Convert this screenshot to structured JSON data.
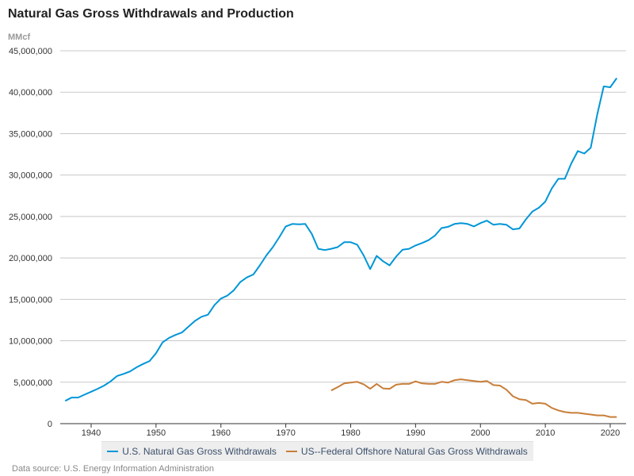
{
  "chart_data": {
    "type": "line",
    "title": "Natural Gas Gross Withdrawals and Production",
    "ylabel": "MMcf",
    "xlabel": "",
    "ylim": [
      0,
      45000000
    ],
    "xlim": [
      1935,
      2022
    ],
    "grid": true,
    "legend_position": "bottom",
    "yticks": [
      0,
      5000000,
      10000000,
      15000000,
      20000000,
      25000000,
      30000000,
      35000000,
      40000000,
      45000000
    ],
    "ytick_labels": [
      "0",
      "5,000,000",
      "10,000,000",
      "15,000,000",
      "20,000,000",
      "25,000,000",
      "30,000,000",
      "35,000,000",
      "40,000,000",
      "45,000,000"
    ],
    "xticks": [
      1940,
      1950,
      1960,
      1970,
      1980,
      1990,
      2000,
      2010,
      2020
    ],
    "xtick_labels": [
      "1940",
      "1950",
      "1960",
      "1970",
      "1980",
      "1990",
      "2000",
      "2010",
      "2020"
    ],
    "series": [
      {
        "name": "U.S. Natural Gas Gross Withdrawals",
        "color": "#0096d7",
        "x": [
          1936,
          1937,
          1938,
          1939,
          1940,
          1941,
          1942,
          1943,
          1944,
          1945,
          1946,
          1947,
          1948,
          1949,
          1950,
          1951,
          1952,
          1953,
          1954,
          1955,
          1956,
          1957,
          1958,
          1959,
          1960,
          1961,
          1962,
          1963,
          1964,
          1965,
          1966,
          1967,
          1968,
          1969,
          1970,
          1971,
          1972,
          1973,
          1974,
          1975,
          1976,
          1977,
          1978,
          1979,
          1980,
          1981,
          1982,
          1983,
          1984,
          1985,
          1986,
          1987,
          1988,
          1989,
          1990,
          1991,
          1992,
          1993,
          1994,
          1995,
          1996,
          1997,
          1998,
          1999,
          2000,
          2001,
          2002,
          2003,
          2004,
          2005,
          2006,
          2007,
          2008,
          2009,
          2010,
          2011,
          2012,
          2013,
          2014,
          2015,
          2016,
          2017,
          2018,
          2019,
          2020,
          2021
        ],
        "values": [
          2750000,
          3150000,
          3150000,
          3500000,
          3850000,
          4200000,
          4600000,
          5100000,
          5750000,
          6000000,
          6300000,
          6800000,
          7200000,
          7550000,
          8500000,
          9800000,
          10350000,
          10700000,
          11000000,
          11700000,
          12400000,
          12900000,
          13150000,
          14300000,
          15100000,
          15450000,
          16100000,
          17100000,
          17650000,
          18000000,
          19100000,
          20300000,
          21300000,
          22500000,
          23800000,
          24100000,
          24050000,
          24100000,
          22900000,
          21100000,
          20950000,
          21100000,
          21300000,
          21900000,
          21900000,
          21600000,
          20300000,
          18650000,
          20250000,
          19600000,
          19100000,
          20150000,
          21000000,
          21100000,
          21500000,
          21800000,
          22150000,
          22700000,
          23600000,
          23750000,
          24100000,
          24200000,
          24100000,
          23800000,
          24200000,
          24500000,
          24000000,
          24100000,
          24000000,
          23450000,
          23550000,
          24650000,
          25600000,
          26050000,
          26800000,
          28400000,
          29550000,
          29550000,
          31400000,
          32900000,
          32600000,
          33300000,
          37300000,
          40700000,
          40600000,
          41700000
        ]
      },
      {
        "name": "US--Federal Offshore Natural Gas Gross Withdrawals",
        "color": "#c87e3a",
        "x": [
          1977,
          1978,
          1979,
          1980,
          1981,
          1982,
          1983,
          1984,
          1985,
          1986,
          1987,
          1988,
          1989,
          1990,
          1991,
          1992,
          1993,
          1994,
          1995,
          1996,
          1997,
          1998,
          1999,
          2000,
          2001,
          2002,
          2003,
          2004,
          2005,
          2006,
          2007,
          2008,
          2009,
          2010,
          2011,
          2012,
          2013,
          2014,
          2015,
          2016,
          2017,
          2018,
          2019,
          2020,
          2021
        ],
        "values": [
          4000000,
          4400000,
          4850000,
          4950000,
          5050000,
          4750000,
          4200000,
          4800000,
          4250000,
          4200000,
          4700000,
          4800000,
          4800000,
          5100000,
          4850000,
          4800000,
          4800000,
          5050000,
          4950000,
          5250000,
          5350000,
          5250000,
          5150000,
          5050000,
          5150000,
          4650000,
          4600000,
          4100000,
          3300000,
          2950000,
          2850000,
          2400000,
          2500000,
          2400000,
          1900000,
          1600000,
          1400000,
          1300000,
          1300000,
          1200000,
          1100000,
          1000000,
          1000000,
          800000,
          800000
        ]
      }
    ]
  },
  "header": {
    "title": "Natural Gas Gross Withdrawals and Production",
    "unit": "MMcf"
  },
  "legend": {
    "items": [
      {
        "label": "U.S. Natural Gas Gross Withdrawals",
        "color": "#0096d7"
      },
      {
        "label": "US--Federal Offshore Natural Gas Gross Withdrawals",
        "color": "#c87e3a"
      }
    ]
  },
  "footer": {
    "source": "Data source: U.S. Energy Information Administration"
  }
}
